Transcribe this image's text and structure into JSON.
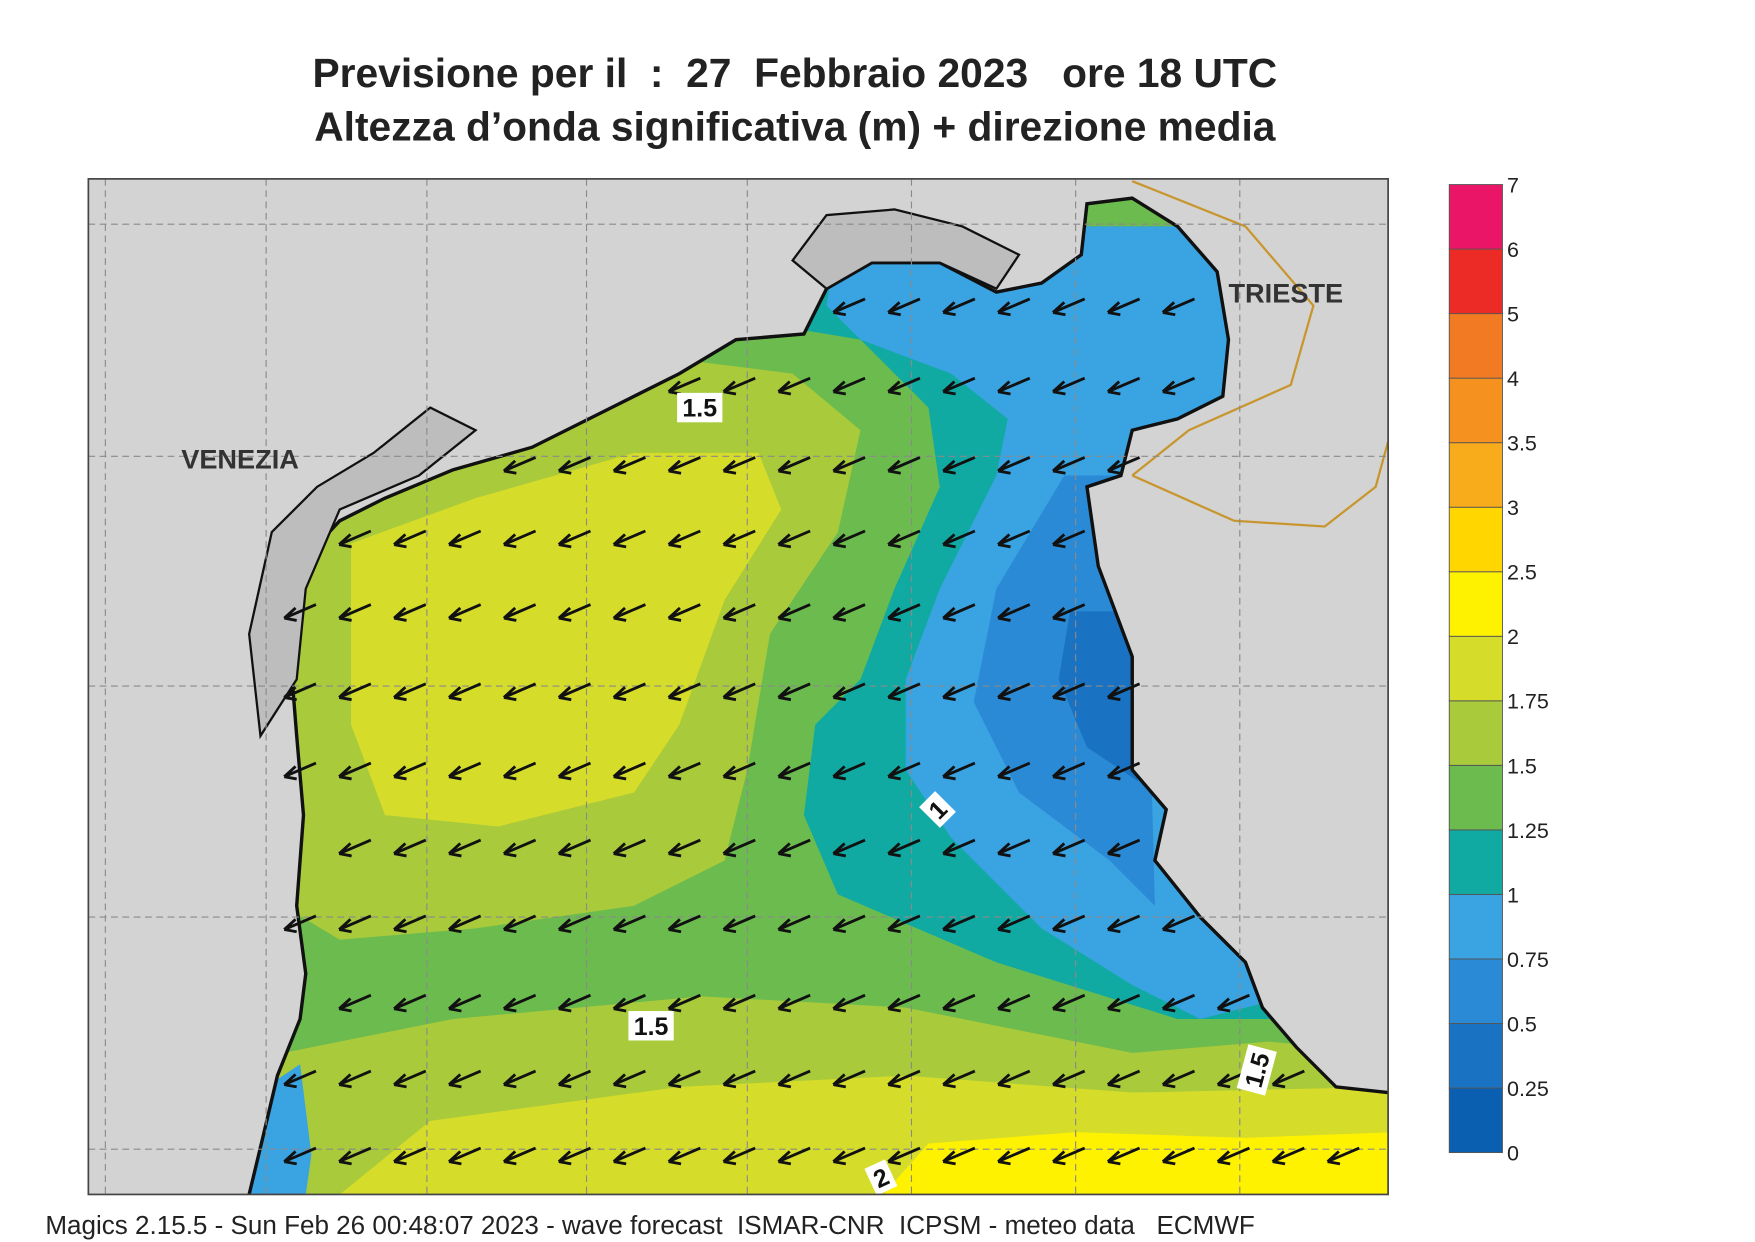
{
  "title": [
    "Previsione per il  :  27  Febbraio 2023   ore 18 UTC",
    "Altezza d’onda significativa (m) + direzione media"
  ],
  "places": [
    "VENEZIA",
    "TRIESTE"
  ],
  "contour_labels": [
    "1.5",
    "1",
    "1.5",
    "1.5",
    "2"
  ],
  "colorbar": {
    "levels": [
      0,
      0.25,
      0.5,
      0.75,
      1,
      1.25,
      1.5,
      1.75,
      2,
      2.5,
      3,
      3.5,
      4,
      5,
      6,
      7
    ],
    "colors": [
      "#0a5fb0",
      "#1a73c2",
      "#2b8ad5",
      "#3aa3e2",
      "#10aaa2",
      "#6cbb4e",
      "#a9ca3b",
      "#d5dc2a",
      "#fff200",
      "#ffd600",
      "#f9ac1b",
      "#f5921f",
      "#f27a22",
      "#ec2a26",
      "#ea1566"
    ]
  },
  "footer": "Magics 2.15.5 - Sun Feb 26 00:48:07 2023 - wave forecast  ISMAR-CNR  ICPSM - meteo data   ECMWF"
}
